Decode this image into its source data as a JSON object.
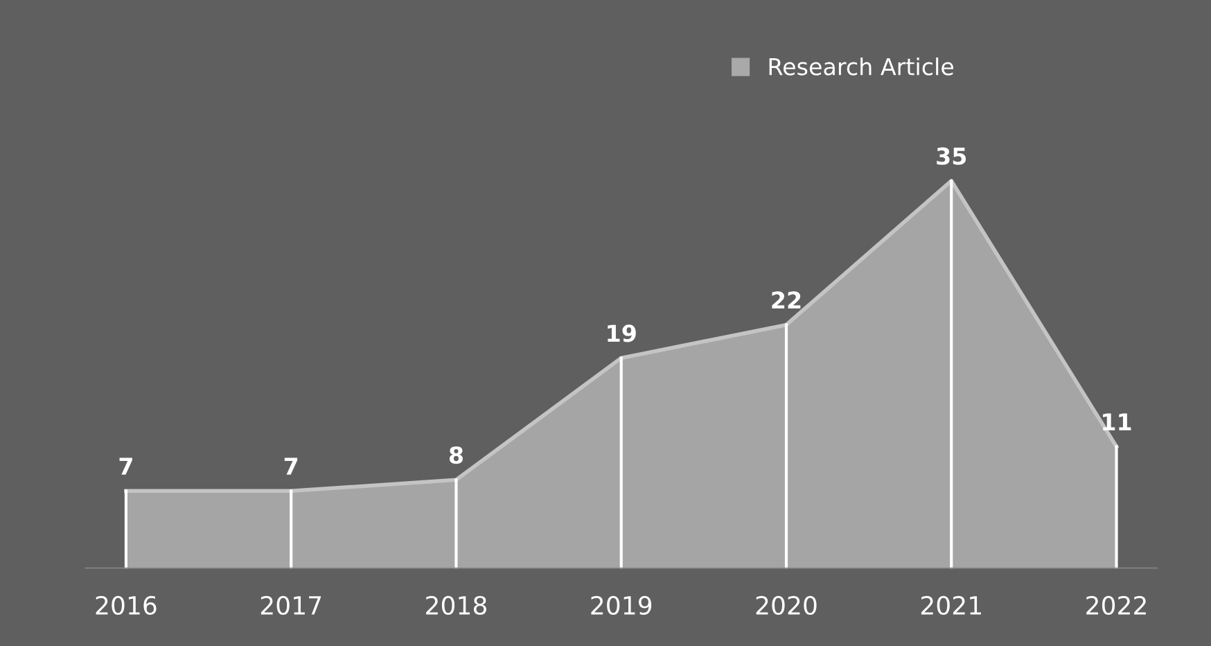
{
  "chart_data": {
    "type": "area",
    "categories": [
      "2016",
      "2017",
      "2018",
      "2019",
      "2020",
      "2021",
      "2022"
    ],
    "series": [
      {
        "name": "Research Article",
        "color": "#a9a9a9",
        "values": [
          7,
          7,
          8,
          19,
          22,
          35,
          11
        ]
      }
    ],
    "data_labels": true,
    "legend": "top right",
    "grid": "x"
  }
}
